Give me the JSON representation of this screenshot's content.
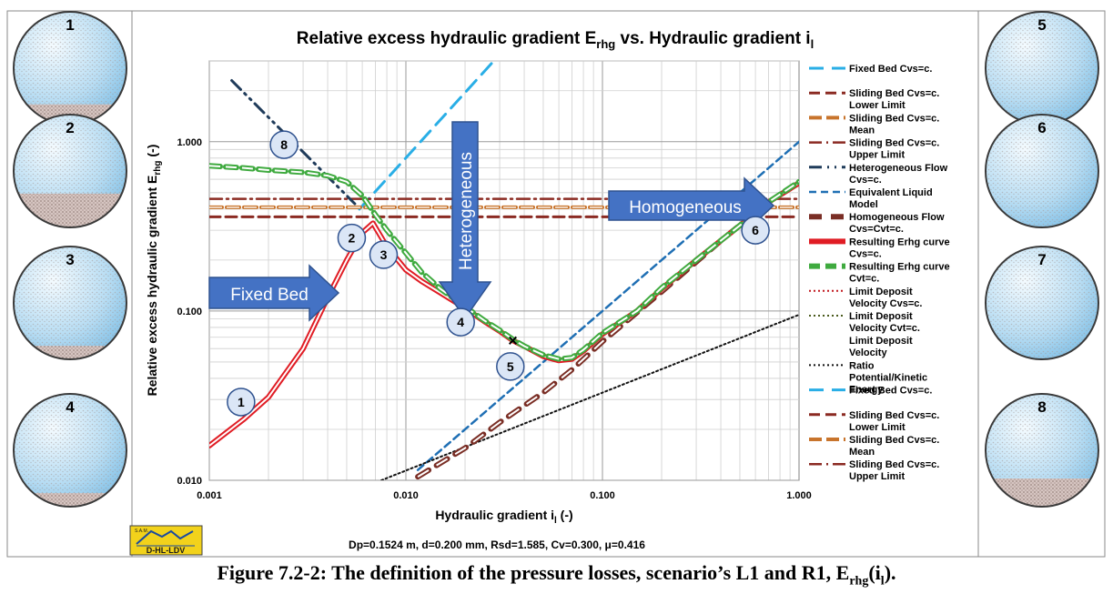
{
  "figure": {
    "caption_main": "Figure 7.2-2: The definition of the pressure losses, scenario’s L1 and R1, E",
    "caption_sub": "rhg",
    "caption_tail": "(i",
    "caption_tail_sub": "l",
    "caption_end": ")."
  },
  "pipe_images": [
    {
      "label": "1",
      "bed_fraction": 0.18
    },
    {
      "label": "2",
      "bed_fraction": 0.3
    },
    {
      "label": "3",
      "bed_fraction": 0.12
    },
    {
      "label": "4",
      "bed_fraction": 0.12
    },
    {
      "label": "5",
      "bed_fraction": 0.0
    },
    {
      "label": "6",
      "bed_fraction": 0.0
    },
    {
      "label": "7",
      "bed_fraction": 0.0
    },
    {
      "label": "8",
      "bed_fraction": 0.25
    }
  ],
  "logo": {
    "text": "D-HL-LDV",
    "small_text": "S.A.M."
  },
  "footer_params": "Dp=0.1524 m, d=0.200 mm, Rsd=1.585, Cv=0.300, μ=0.416",
  "chart_data": {
    "type": "line",
    "title": "Relative excess hydraulic gradient E",
    "title_sub": "rhg",
    "title_mid": " vs. Hydraulic gradient i",
    "title_sub2": "l",
    "xlabel": "Hydraulic gradient i",
    "xlabel_sub": "l",
    "xlabel_unit": " (-)",
    "ylabel": "Relative excess hydraulic gradient E",
    "ylabel_sub": "rhg",
    "ylabel_unit": " (-)",
    "x_scale": "log",
    "y_scale": "log",
    "xlim": [
      0.001,
      1.0
    ],
    "ylim": [
      0.01,
      3.0
    ],
    "x_ticks": [
      "0.001",
      "0.010",
      "0.100",
      "1.000"
    ],
    "y_ticks": [
      "0.010",
      "0.100",
      "1.000"
    ],
    "grid": true,
    "legend_position": "right",
    "series": [
      {
        "name": "Fixed Bed Cvs=c.",
        "color": "#29aee6",
        "x": [
          0.0058,
          0.028
        ],
        "y": [
          0.4,
          3.0
        ]
      },
      {
        "name": "Sliding Bed Cvs=c. Lower Limit",
        "color": "#8b2a22",
        "x": [
          0.001,
          1.0
        ],
        "y": [
          0.36,
          0.36
        ]
      },
      {
        "name": "Sliding Bed Cvs=c. Mean",
        "color": "#c8742c",
        "x": [
          0.001,
          1.0
        ],
        "y": [
          0.41,
          0.41
        ]
      },
      {
        "name": "Sliding Bed Cvs=c. Upper Limit",
        "color": "#8b2a22",
        "x": [
          0.001,
          1.0
        ],
        "y": [
          0.46,
          0.46
        ]
      },
      {
        "name": "Heterogeneous Flow Cvs=c.",
        "color": "#1f3b5a",
        "x": [
          0.0013,
          0.0055
        ],
        "y": [
          2.3,
          0.43
        ]
      },
      {
        "name": "Equivalent Liquid Model",
        "color": "#1f6fb4",
        "x": [
          0.0115,
          1.0
        ],
        "y": [
          0.0115,
          1.0
        ]
      },
      {
        "name": "Homogeneous Flow Cvs=Cvt=c.",
        "color": "#7a2e25",
        "x": [
          0.0115,
          0.02,
          0.03,
          0.05,
          0.07,
          0.1,
          0.2,
          0.4,
          0.7,
          1.0
        ],
        "y": [
          0.0105,
          0.0155,
          0.022,
          0.033,
          0.045,
          0.066,
          0.13,
          0.26,
          0.44,
          0.57
        ]
      },
      {
        "name": "Resulting Erhg curve Cvs=c.",
        "color": "#e01c24",
        "x": [
          0.001,
          0.0015,
          0.002,
          0.003,
          0.004,
          0.005,
          0.006,
          0.0068,
          0.008,
          0.01,
          0.012,
          0.015,
          0.02,
          0.025,
          0.03,
          0.035,
          0.04,
          0.05,
          0.06,
          0.07,
          0.08,
          0.1,
          0.15,
          0.2,
          0.3,
          0.5,
          0.7,
          1.0
        ],
        "y": [
          0.016,
          0.023,
          0.031,
          0.06,
          0.12,
          0.2,
          0.29,
          0.33,
          0.24,
          0.175,
          0.15,
          0.128,
          0.104,
          0.087,
          0.076,
          0.067,
          0.062,
          0.054,
          0.051,
          0.052,
          0.058,
          0.073,
          0.1,
          0.135,
          0.2,
          0.32,
          0.44,
          0.57
        ]
      },
      {
        "name": "Resulting Erhg curve Cvt=c.",
        "color": "#3faa3f",
        "x": [
          0.001,
          0.0015,
          0.002,
          0.003,
          0.004,
          0.005,
          0.006,
          0.007,
          0.008,
          0.01,
          0.012,
          0.015,
          0.02,
          0.025,
          0.03,
          0.035,
          0.04,
          0.05,
          0.06,
          0.07,
          0.08,
          0.1,
          0.15,
          0.2,
          0.3,
          0.5,
          0.7,
          1.0
        ],
        "y": [
          0.72,
          0.7,
          0.68,
          0.66,
          0.63,
          0.58,
          0.48,
          0.37,
          0.3,
          0.22,
          0.17,
          0.135,
          0.106,
          0.088,
          0.077,
          0.068,
          0.062,
          0.055,
          0.052,
          0.053,
          0.059,
          0.074,
          0.1,
          0.137,
          0.2,
          0.32,
          0.44,
          0.58
        ]
      },
      {
        "name": "Ratio Potential/Kinetic Energy",
        "color": "#111111",
        "x": [
          0.0075,
          1.0
        ],
        "y": [
          0.01,
          0.095
        ]
      }
    ],
    "legend_extra": [
      {
        "name": "Limit Deposit Velocity Cvs=c.",
        "color": "#c0161c"
      },
      {
        "name": "Limit Deposit Velocity Cvt=c.",
        "color": "#4a5a1c"
      },
      {
        "name": "Limit Deposit Velocity",
        "color": "#ffffff"
      }
    ],
    "marker_point": {
      "x": 0.035,
      "y": 0.067,
      "symbol": "×"
    },
    "annotations": [
      {
        "label": "1",
        "x": 0.00145,
        "y": 0.029
      },
      {
        "label": "2",
        "x": 0.0053,
        "y": 0.27
      },
      {
        "label": "3",
        "x": 0.0077,
        "y": 0.215
      },
      {
        "label": "4",
        "x": 0.019,
        "y": 0.086
      },
      {
        "label": "5",
        "x": 0.034,
        "y": 0.047
      },
      {
        "label": "6",
        "x": 0.6,
        "y": 0.3
      },
      {
        "label": "8",
        "x": 0.0024,
        "y": 0.96
      }
    ],
    "regions": [
      {
        "label": "Fixed Bed"
      },
      {
        "label": "Heterogeneous"
      },
      {
        "label": "Homogeneous"
      }
    ]
  }
}
